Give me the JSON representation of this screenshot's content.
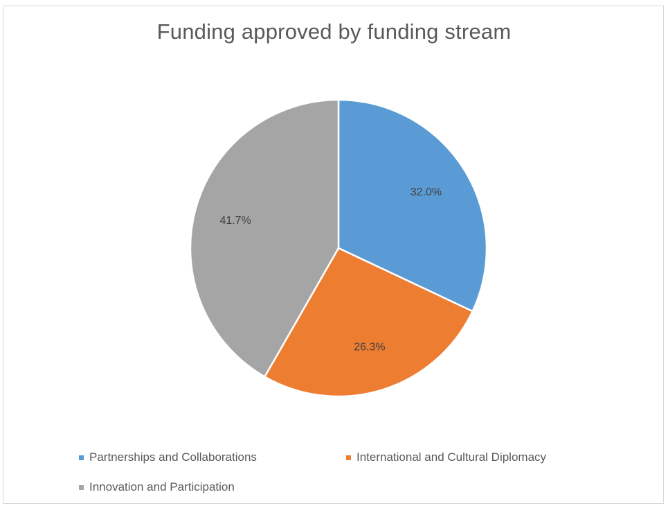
{
  "chart_data": {
    "type": "pie",
    "title": "Funding approved by funding stream",
    "categories": [
      "Partnerships and Collaborations",
      "International and Cultural Diplomacy",
      "Innovation and Participation"
    ],
    "values": [
      32.0,
      26.3,
      41.7
    ],
    "data_labels": [
      "32.0%",
      "26.3%",
      "41.7%"
    ],
    "colors": [
      "#5b9bd5",
      "#ed7d31",
      "#a5a5a5"
    ],
    "legend_position": "bottom",
    "start_angle": "12 o'clock, clockwise"
  }
}
